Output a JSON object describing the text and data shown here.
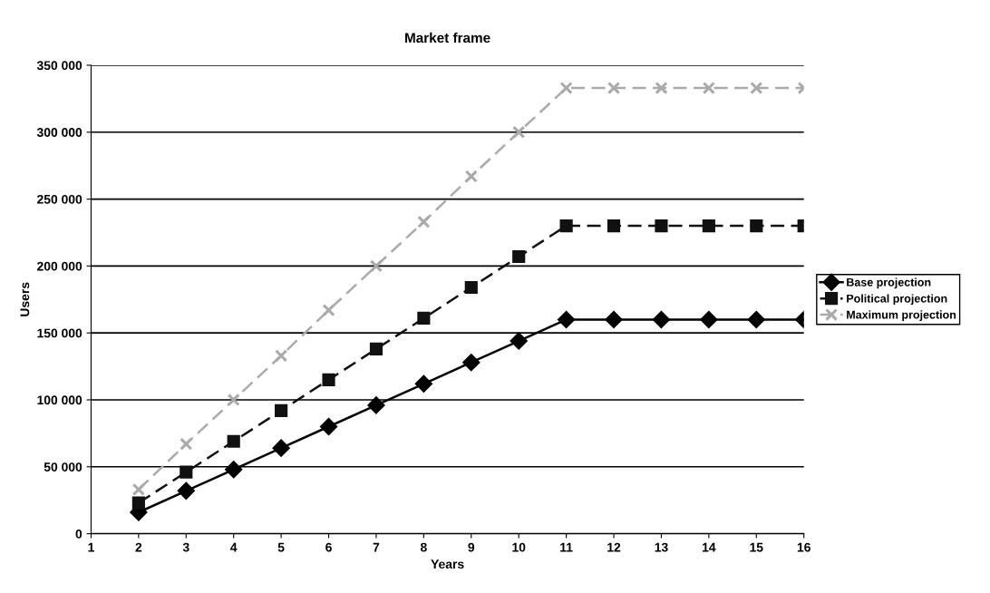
{
  "chart_data": {
    "type": "line",
    "title": "Market frame",
    "xlabel": "Years",
    "ylabel": "Users",
    "x": [
      2,
      3,
      4,
      5,
      6,
      7,
      8,
      9,
      10,
      11,
      12,
      13,
      14,
      15,
      16
    ],
    "series": [
      {
        "name": "Base projection",
        "color": "#000000",
        "marker": "diamond",
        "line_style": "solid",
        "values": [
          16000,
          32000,
          48000,
          64000,
          80000,
          96000,
          112000,
          128000,
          144000,
          160000,
          160000,
          160000,
          160000,
          160000,
          160000
        ]
      },
      {
        "name": "Political projection",
        "color": "#111111",
        "marker": "square",
        "line_style": "dashed",
        "values": [
          23000,
          46000,
          69000,
          92000,
          115000,
          138000,
          161000,
          184000,
          207000,
          230000,
          230000,
          230000,
          230000,
          230000,
          230000
        ]
      },
      {
        "name": "Maximum projection",
        "color": "#aaaaaa",
        "marker": "cross",
        "line_style": "dashed",
        "values": [
          33000,
          67000,
          100000,
          133000,
          167000,
          200000,
          233000,
          267000,
          300000,
          333000,
          333000,
          333000,
          333000,
          333000,
          333000
        ]
      }
    ],
    "xlim": [
      1,
      16
    ],
    "xticks": [
      1,
      2,
      3,
      4,
      5,
      6,
      7,
      8,
      9,
      10,
      11,
      12,
      13,
      14,
      15,
      16
    ],
    "ylim": [
      0,
      350000
    ],
    "yticks": [
      {
        "value": 0,
        "label": "0"
      },
      {
        "value": 50000,
        "label": "50 000"
      },
      {
        "value": 100000,
        "label": "100 000"
      },
      {
        "value": 150000,
        "label": "150 000"
      },
      {
        "value": 200000,
        "label": "200 000"
      },
      {
        "value": 250000,
        "label": "250 000"
      },
      {
        "value": 300000,
        "label": "300 000"
      },
      {
        "value": 350000,
        "label": "350 000"
      }
    ],
    "grid": "y",
    "legend": "right"
  }
}
